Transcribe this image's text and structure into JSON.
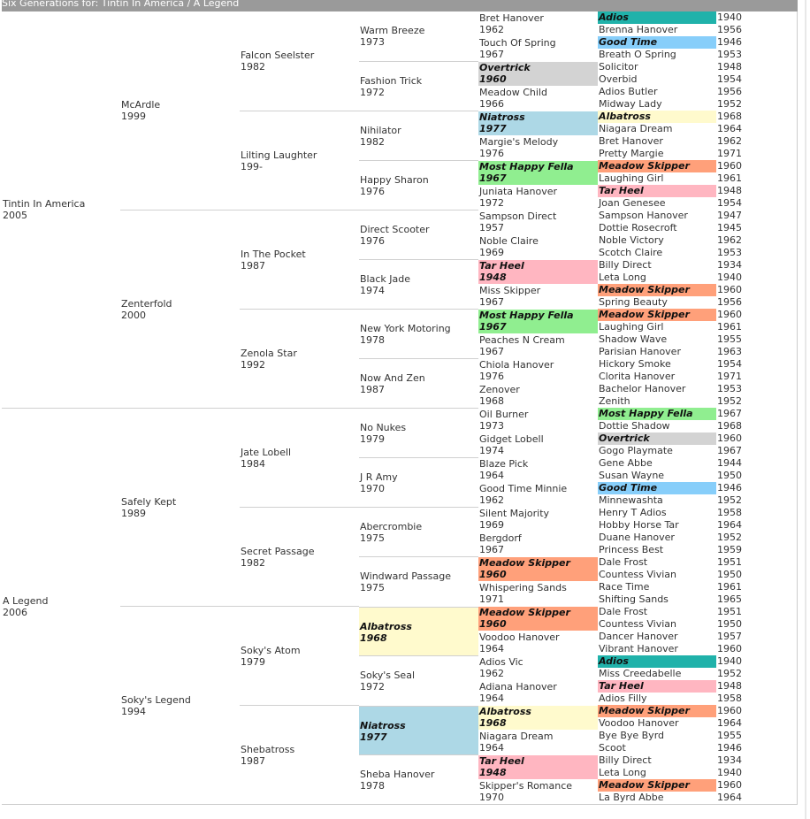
{
  "page": {
    "title": "Six Generations for: Tintin In America / A Legend",
    "colors": {
      "title_bar": "#9a9a9a",
      "Adios": "#20b2aa",
      "Good Time": "#87cefa",
      "Overtrick": "#d3d3d3",
      "Niatross": "#add8e6",
      "Albatross": "#fffacd",
      "Most Happy Fella": "#90ee90",
      "Meadow Skipper": "#ffa07a",
      "Tar Heel": "#ffb6c1"
    }
  },
  "generations": [
    [
      {
        "name": "Tintin In America",
        "year": "2005"
      },
      {
        "name": "A Legend",
        "year": "2006"
      }
    ],
    [
      {
        "name": "McArdle",
        "year": "1999"
      },
      {
        "name": "Zenterfold",
        "year": "2000"
      },
      {
        "name": "Safely Kept",
        "year": "1989"
      },
      {
        "name": "Soky's Legend",
        "year": "1994"
      }
    ],
    [
      {
        "name": "Falcon Seelster",
        "year": "1982"
      },
      {
        "name": "Lilting Laughter",
        "year": "199-"
      },
      {
        "name": "In The Pocket",
        "year": "1987"
      },
      {
        "name": "Zenola Star",
        "year": "1992"
      },
      {
        "name": "Jate Lobell",
        "year": "1984"
      },
      {
        "name": "Secret Passage",
        "year": "1982"
      },
      {
        "name": "Soky's Atom",
        "year": "1979"
      },
      {
        "name": "Shebatross",
        "year": "1987"
      }
    ],
    [
      {
        "name": "Warm Breeze",
        "year": "1973"
      },
      {
        "name": "Fashion Trick",
        "year": "1972"
      },
      {
        "name": "Nihilator",
        "year": "1982"
      },
      {
        "name": "Happy Sharon",
        "year": "1976"
      },
      {
        "name": "Direct Scooter",
        "year": "1976"
      },
      {
        "name": "Black Jade",
        "year": "1974"
      },
      {
        "name": "New York Motoring",
        "year": "1978"
      },
      {
        "name": "Now And Zen",
        "year": "1987"
      },
      {
        "name": "No Nukes",
        "year": "1979"
      },
      {
        "name": "J R Amy",
        "year": "1970"
      },
      {
        "name": "Abercrombie",
        "year": "1975"
      },
      {
        "name": "Windward Passage",
        "year": "1975"
      },
      {
        "name": "Albatross",
        "year": "1968",
        "hl": "Albatross"
      },
      {
        "name": "Soky's Seal",
        "year": "1972"
      },
      {
        "name": "Niatross",
        "year": "1977",
        "hl": "Niatross"
      },
      {
        "name": "Sheba Hanover",
        "year": "1978"
      }
    ],
    [
      {
        "name": "Bret Hanover",
        "year": "1962"
      },
      {
        "name": "Touch Of Spring",
        "year": "1967"
      },
      {
        "name": "Overtrick",
        "year": "1960",
        "hl": "Overtrick"
      },
      {
        "name": "Meadow Child",
        "year": "1966"
      },
      {
        "name": "Niatross",
        "year": "1977",
        "hl": "Niatross"
      },
      {
        "name": "Margie's Melody",
        "year": "1976"
      },
      {
        "name": "Most Happy Fella",
        "year": "1967",
        "hl": "Most Happy Fella"
      },
      {
        "name": "Juniata Hanover",
        "year": "1972"
      },
      {
        "name": "Sampson Direct",
        "year": "1957"
      },
      {
        "name": "Noble Claire",
        "year": "1969"
      },
      {
        "name": "Tar Heel",
        "year": "1948",
        "hl": "Tar Heel"
      },
      {
        "name": "Miss Skipper",
        "year": "1967"
      },
      {
        "name": "Most Happy Fella",
        "year": "1967",
        "hl": "Most Happy Fella"
      },
      {
        "name": "Peaches N Cream",
        "year": "1967"
      },
      {
        "name": "Chiola Hanover",
        "year": "1976"
      },
      {
        "name": "Zenover",
        "year": "1968"
      },
      {
        "name": "Oil Burner",
        "year": "1973"
      },
      {
        "name": "Gidget Lobell",
        "year": "1974"
      },
      {
        "name": "Blaze Pick",
        "year": "1964"
      },
      {
        "name": "Good Time Minnie",
        "year": "1962"
      },
      {
        "name": "Silent Majority",
        "year": "1969"
      },
      {
        "name": "Bergdorf",
        "year": "1967"
      },
      {
        "name": "Meadow Skipper",
        "year": "1960",
        "hl": "Meadow Skipper"
      },
      {
        "name": "Whispering Sands",
        "year": "1971"
      },
      {
        "name": "Meadow Skipper",
        "year": "1960",
        "hl": "Meadow Skipper"
      },
      {
        "name": "Voodoo Hanover",
        "year": "1964"
      },
      {
        "name": "Adios Vic",
        "year": "1962"
      },
      {
        "name": "Adiana Hanover",
        "year": "1964"
      },
      {
        "name": "Albatross",
        "year": "1968",
        "hl": "Albatross"
      },
      {
        "name": "Niagara Dream",
        "year": "1964"
      },
      {
        "name": "Tar Heel",
        "year": "1948",
        "hl": "Tar Heel"
      },
      {
        "name": "Skipper's Romance",
        "year": "1970"
      }
    ],
    [
      {
        "name": "Adios",
        "year": "1940",
        "hl": "Adios"
      },
      {
        "name": "Brenna Hanover",
        "year": "1956"
      },
      {
        "name": "Good Time",
        "year": "1946",
        "hl": "Good Time"
      },
      {
        "name": "Breath O Spring",
        "year": "1953"
      },
      {
        "name": "Solicitor",
        "year": "1948"
      },
      {
        "name": "Overbid",
        "year": "1954"
      },
      {
        "name": "Adios Butler",
        "year": "1956"
      },
      {
        "name": "Midway Lady",
        "year": "1952"
      },
      {
        "name": "Albatross",
        "year": "1968",
        "hl": "Albatross"
      },
      {
        "name": "Niagara Dream",
        "year": "1964"
      },
      {
        "name": "Bret Hanover",
        "year": "1962"
      },
      {
        "name": "Pretty Margie",
        "year": "1971"
      },
      {
        "name": "Meadow Skipper",
        "year": "1960",
        "hl": "Meadow Skipper"
      },
      {
        "name": "Laughing Girl",
        "year": "1961"
      },
      {
        "name": "Tar Heel",
        "year": "1948",
        "hl": "Tar Heel"
      },
      {
        "name": "Joan Genesee",
        "year": "1954"
      },
      {
        "name": "Sampson Hanover",
        "year": "1947"
      },
      {
        "name": "Dottie Rosecroft",
        "year": "1945"
      },
      {
        "name": "Noble Victory",
        "year": "1962"
      },
      {
        "name": "Scotch Claire",
        "year": "1953"
      },
      {
        "name": "Billy Direct",
        "year": "1934"
      },
      {
        "name": "Leta Long",
        "year": "1940"
      },
      {
        "name": "Meadow Skipper",
        "year": "1960",
        "hl": "Meadow Skipper"
      },
      {
        "name": "Spring Beauty",
        "year": "1956"
      },
      {
        "name": "Meadow Skipper",
        "year": "1960",
        "hl": "Meadow Skipper"
      },
      {
        "name": "Laughing Girl",
        "year": "1961"
      },
      {
        "name": "Shadow Wave",
        "year": "1955"
      },
      {
        "name": "Parisian Hanover",
        "year": "1963"
      },
      {
        "name": "Hickory Smoke",
        "year": "1954"
      },
      {
        "name": "Clorita Hanover",
        "year": "1971"
      },
      {
        "name": "Bachelor Hanover",
        "year": "1953"
      },
      {
        "name": "Zenith",
        "year": "1952"
      },
      {
        "name": "Most Happy Fella",
        "year": "1967",
        "hl": "Most Happy Fella"
      },
      {
        "name": "Dottie Shadow",
        "year": "1968"
      },
      {
        "name": "Overtrick",
        "year": "1960",
        "hl": "Overtrick"
      },
      {
        "name": "Gogo Playmate",
        "year": "1967"
      },
      {
        "name": "Gene Abbe",
        "year": "1944"
      },
      {
        "name": "Susan Wayne",
        "year": "1950"
      },
      {
        "name": "Good Time",
        "year": "1946",
        "hl": "Good Time"
      },
      {
        "name": "Minnewashta",
        "year": "1952"
      },
      {
        "name": "Henry T Adios",
        "year": "1958"
      },
      {
        "name": "Hobby Horse Tar",
        "year": "1964"
      },
      {
        "name": "Duane Hanover",
        "year": "1952"
      },
      {
        "name": "Princess Best",
        "year": "1959"
      },
      {
        "name": "Dale Frost",
        "year": "1951"
      },
      {
        "name": "Countess Vivian",
        "year": "1950"
      },
      {
        "name": "Race Time",
        "year": "1961"
      },
      {
        "name": "Shifting Sands",
        "year": "1965"
      },
      {
        "name": "Dale Frost",
        "year": "1951"
      },
      {
        "name": "Countess Vivian",
        "year": "1950"
      },
      {
        "name": "Dancer Hanover",
        "year": "1957"
      },
      {
        "name": "Vibrant Hanover",
        "year": "1960"
      },
      {
        "name": "Adios",
        "year": "1940",
        "hl": "Adios"
      },
      {
        "name": "Miss Creedabelle",
        "year": "1952"
      },
      {
        "name": "Tar Heel",
        "year": "1948",
        "hl": "Tar Heel"
      },
      {
        "name": "Adios Filly",
        "year": "1958"
      },
      {
        "name": "Meadow Skipper",
        "year": "1960",
        "hl": "Meadow Skipper"
      },
      {
        "name": "Voodoo Hanover",
        "year": "1964"
      },
      {
        "name": "Bye Bye Byrd",
        "year": "1955"
      },
      {
        "name": "Scoot",
        "year": "1946"
      },
      {
        "name": "Billy Direct",
        "year": "1934"
      },
      {
        "name": "Leta Long",
        "year": "1940"
      },
      {
        "name": "Meadow Skipper",
        "year": "1960",
        "hl": "Meadow Skipper"
      },
      {
        "name": "La Byrd Abbe",
        "year": "1964"
      }
    ]
  ]
}
